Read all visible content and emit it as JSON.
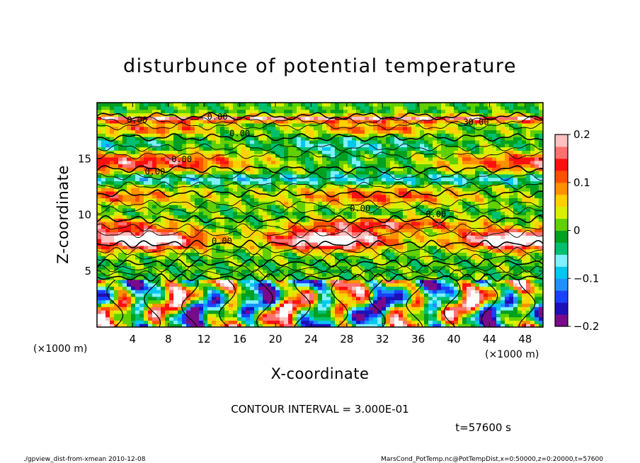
{
  "chart_data": {
    "type": "heatmap",
    "title": "disturbunce of potential temperature",
    "xlabel": "X-coordinate",
    "ylabel": "Z-coordinate",
    "x_unit_label": "(×1000 m)",
    "y_unit_label": "(×1000 m)",
    "x_ticks": [
      4,
      8,
      12,
      16,
      20,
      24,
      28,
      32,
      36,
      40,
      44,
      48
    ],
    "y_ticks": [
      5,
      10,
      15
    ],
    "xlim": [
      0,
      50
    ],
    "ylim": [
      0,
      20
    ],
    "colorbar": {
      "range": [
        -0.2,
        0.2
      ],
      "tick_values": [
        0.2,
        0.1,
        0,
        -0.1,
        -0.2
      ],
      "tick_labels": [
        "0.2",
        "0.1",
        "0",
        "−0.1",
        "−0.2"
      ],
      "colors": [
        "#7a0a8a",
        "#1f0fb8",
        "#1a40ff",
        "#1e90ff",
        "#00c8f0",
        "#7ef0ff",
        "#00c070",
        "#00a020",
        "#60d000",
        "#d8f000",
        "#ffd000",
        "#ff9000",
        "#ff5000",
        "#ff1010",
        "#ff7070",
        "#ffc0c0"
      ]
    },
    "contour_labels": [
      "0.00",
      "0.00",
      "0.00",
      "0.00",
      "0.00",
      "0.00",
      "0.00",
      "0.00",
      "30.00"
    ],
    "contour_interval_text": "CONTOUR INTERVAL = 3.000E-01",
    "time_label": "t=57600 s"
  },
  "footer": {
    "left": "./gpview_dist-from-xmean  2010-12-08",
    "right": "MarsCond_PotTemp.nc@PotTempDist,x=0:50000,z=0:20000,t=57600"
  }
}
